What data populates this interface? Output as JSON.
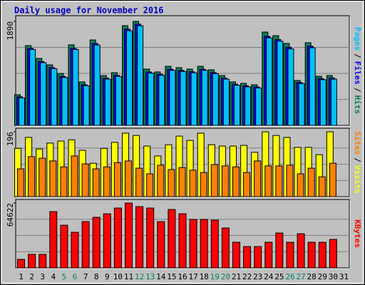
{
  "title": "Daily usage for November 2016",
  "x_axis": {
    "categories": [
      "1",
      "2",
      "3",
      "4",
      "5",
      "6",
      "7",
      "8",
      "9",
      "10",
      "11",
      "12",
      "13",
      "14",
      "15",
      "16",
      "17",
      "18",
      "19",
      "20",
      "21",
      "22",
      "23",
      "24",
      "25",
      "26",
      "27",
      "28",
      "29",
      "30",
      "31"
    ],
    "label_color": "#000000",
    "weekend_color": "#008060",
    "weekend_indexes": [
      4,
      5,
      11,
      12,
      18,
      19,
      25,
      26
    ]
  },
  "legend_separator": "/",
  "chart_data": [
    {
      "type": "bar",
      "ylim": [
        0,
        1890
      ],
      "yticks": [
        1890
      ],
      "grid": true,
      "series": [
        {
          "name": "Hits",
          "color": "#00805c",
          "values": [
            557,
            1450,
            1217,
            1100,
            945,
            1464,
            790,
            1553,
            906,
            958,
            1812,
            1890,
            1023,
            971,
            1074,
            1049,
            1023,
            1074,
            1010,
            906,
            790,
            764,
            738,
            1696,
            1631,
            1489,
            816,
            1502,
            893,
            906
          ]
        },
        {
          "name": "Files",
          "color": "#0000ff",
          "values": [
            520,
            1400,
            1160,
            1050,
            890,
            1400,
            740,
            1490,
            860,
            910,
            1750,
            1840,
            970,
            930,
            1020,
            1000,
            975,
            1020,
            960,
            860,
            750,
            720,
            700,
            1620,
            1560,
            1420,
            780,
            1440,
            850,
            860
          ]
        },
        {
          "name": "Pages",
          "color": "#00c0ff",
          "values": [
            500,
            1380,
            1140,
            1030,
            870,
            1380,
            720,
            1460,
            840,
            890,
            1720,
            1810,
            950,
            910,
            1000,
            980,
            955,
            1000,
            940,
            840,
            730,
            700,
            680,
            1590,
            1530,
            1390,
            760,
            1410,
            830,
            840
          ]
        }
      ]
    },
    {
      "type": "bar",
      "ylim": [
        0,
        196
      ],
      "yticks": [
        196
      ],
      "grid": true,
      "series": [
        {
          "name": "Visits",
          "color": "#ffff00",
          "values": [
            146,
            179,
            144,
            162,
            168,
            172,
            140,
            101,
            146,
            164,
            192,
            185,
            153,
            123,
            157,
            183,
            170,
            192,
            157,
            153,
            153,
            155,
            134,
            196,
            185,
            179,
            149,
            149,
            127,
            196
          ]
        },
        {
          "name": "Sites",
          "color": "#ff8000",
          "values": [
            84,
            121,
            116,
            108,
            90,
            123,
            99,
            84,
            90,
            103,
            108,
            86,
            69,
            95,
            82,
            88,
            80,
            73,
            97,
            93,
            90,
            73,
            108,
            93,
            93,
            95,
            69,
            86,
            60,
            101
          ]
        }
      ]
    },
    {
      "type": "bar",
      "ylim": [
        0,
        64622
      ],
      "yticks": [
        64622
      ],
      "grid": true,
      "series": [
        {
          "name": "KBytes",
          "color": "#ff0000",
          "values": [
            8522,
            13490,
            13490,
            56100,
            42600,
            35500,
            46160,
            50420,
            53970,
            59650,
            64622,
            61070,
            59650,
            46160,
            58230,
            53970,
            48290,
            48290,
            47580,
            39770,
            25570,
            21300,
            21300,
            25570,
            34800,
            25570,
            34080,
            25570,
            25570,
            28400
          ]
        }
      ]
    }
  ]
}
